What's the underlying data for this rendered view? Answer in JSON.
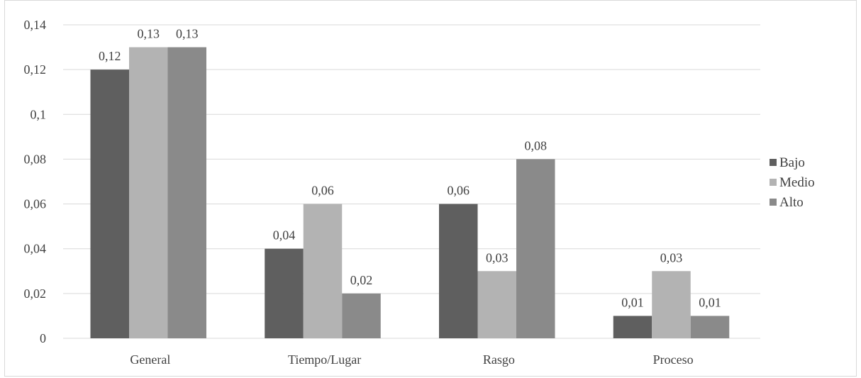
{
  "chart_data": {
    "type": "bar",
    "title": "",
    "xlabel": "",
    "ylabel": "",
    "categories": [
      "General",
      "Tiempo/Lugar",
      "Rasgo",
      "Proceso"
    ],
    "series": [
      {
        "name": "Bajo",
        "values": [
          0.12,
          0.04,
          0.06,
          0.01
        ],
        "labels": [
          "0,12",
          "0,04",
          "0,06",
          "0,01"
        ],
        "color": "#5f5f5f"
      },
      {
        "name": "Medio",
        "values": [
          0.13,
          0.06,
          0.03,
          0.03
        ],
        "labels": [
          "0,13",
          "0,06",
          "0,03",
          "0,03"
        ],
        "color": "#b3b3b3"
      },
      {
        "name": "Alto",
        "values": [
          0.13,
          0.02,
          0.08,
          0.01
        ],
        "labels": [
          "0,13",
          "0,02",
          "0,08",
          "0,01"
        ],
        "color": "#8a8a8a"
      }
    ],
    "ylim": [
      0,
      0.14
    ],
    "yticks": [
      0,
      0.02,
      0.04,
      0.06,
      0.08,
      0.1,
      0.12,
      0.14
    ],
    "ytick_labels": [
      "0",
      "0,02",
      "0,04",
      "0,06",
      "0,08",
      "0,1",
      "0,12",
      "0,14"
    ],
    "grid": true,
    "legend_position": "right",
    "colors": {
      "grid": "#d9d9d9",
      "axis": "#d9d9d9",
      "text": "#404040"
    }
  }
}
